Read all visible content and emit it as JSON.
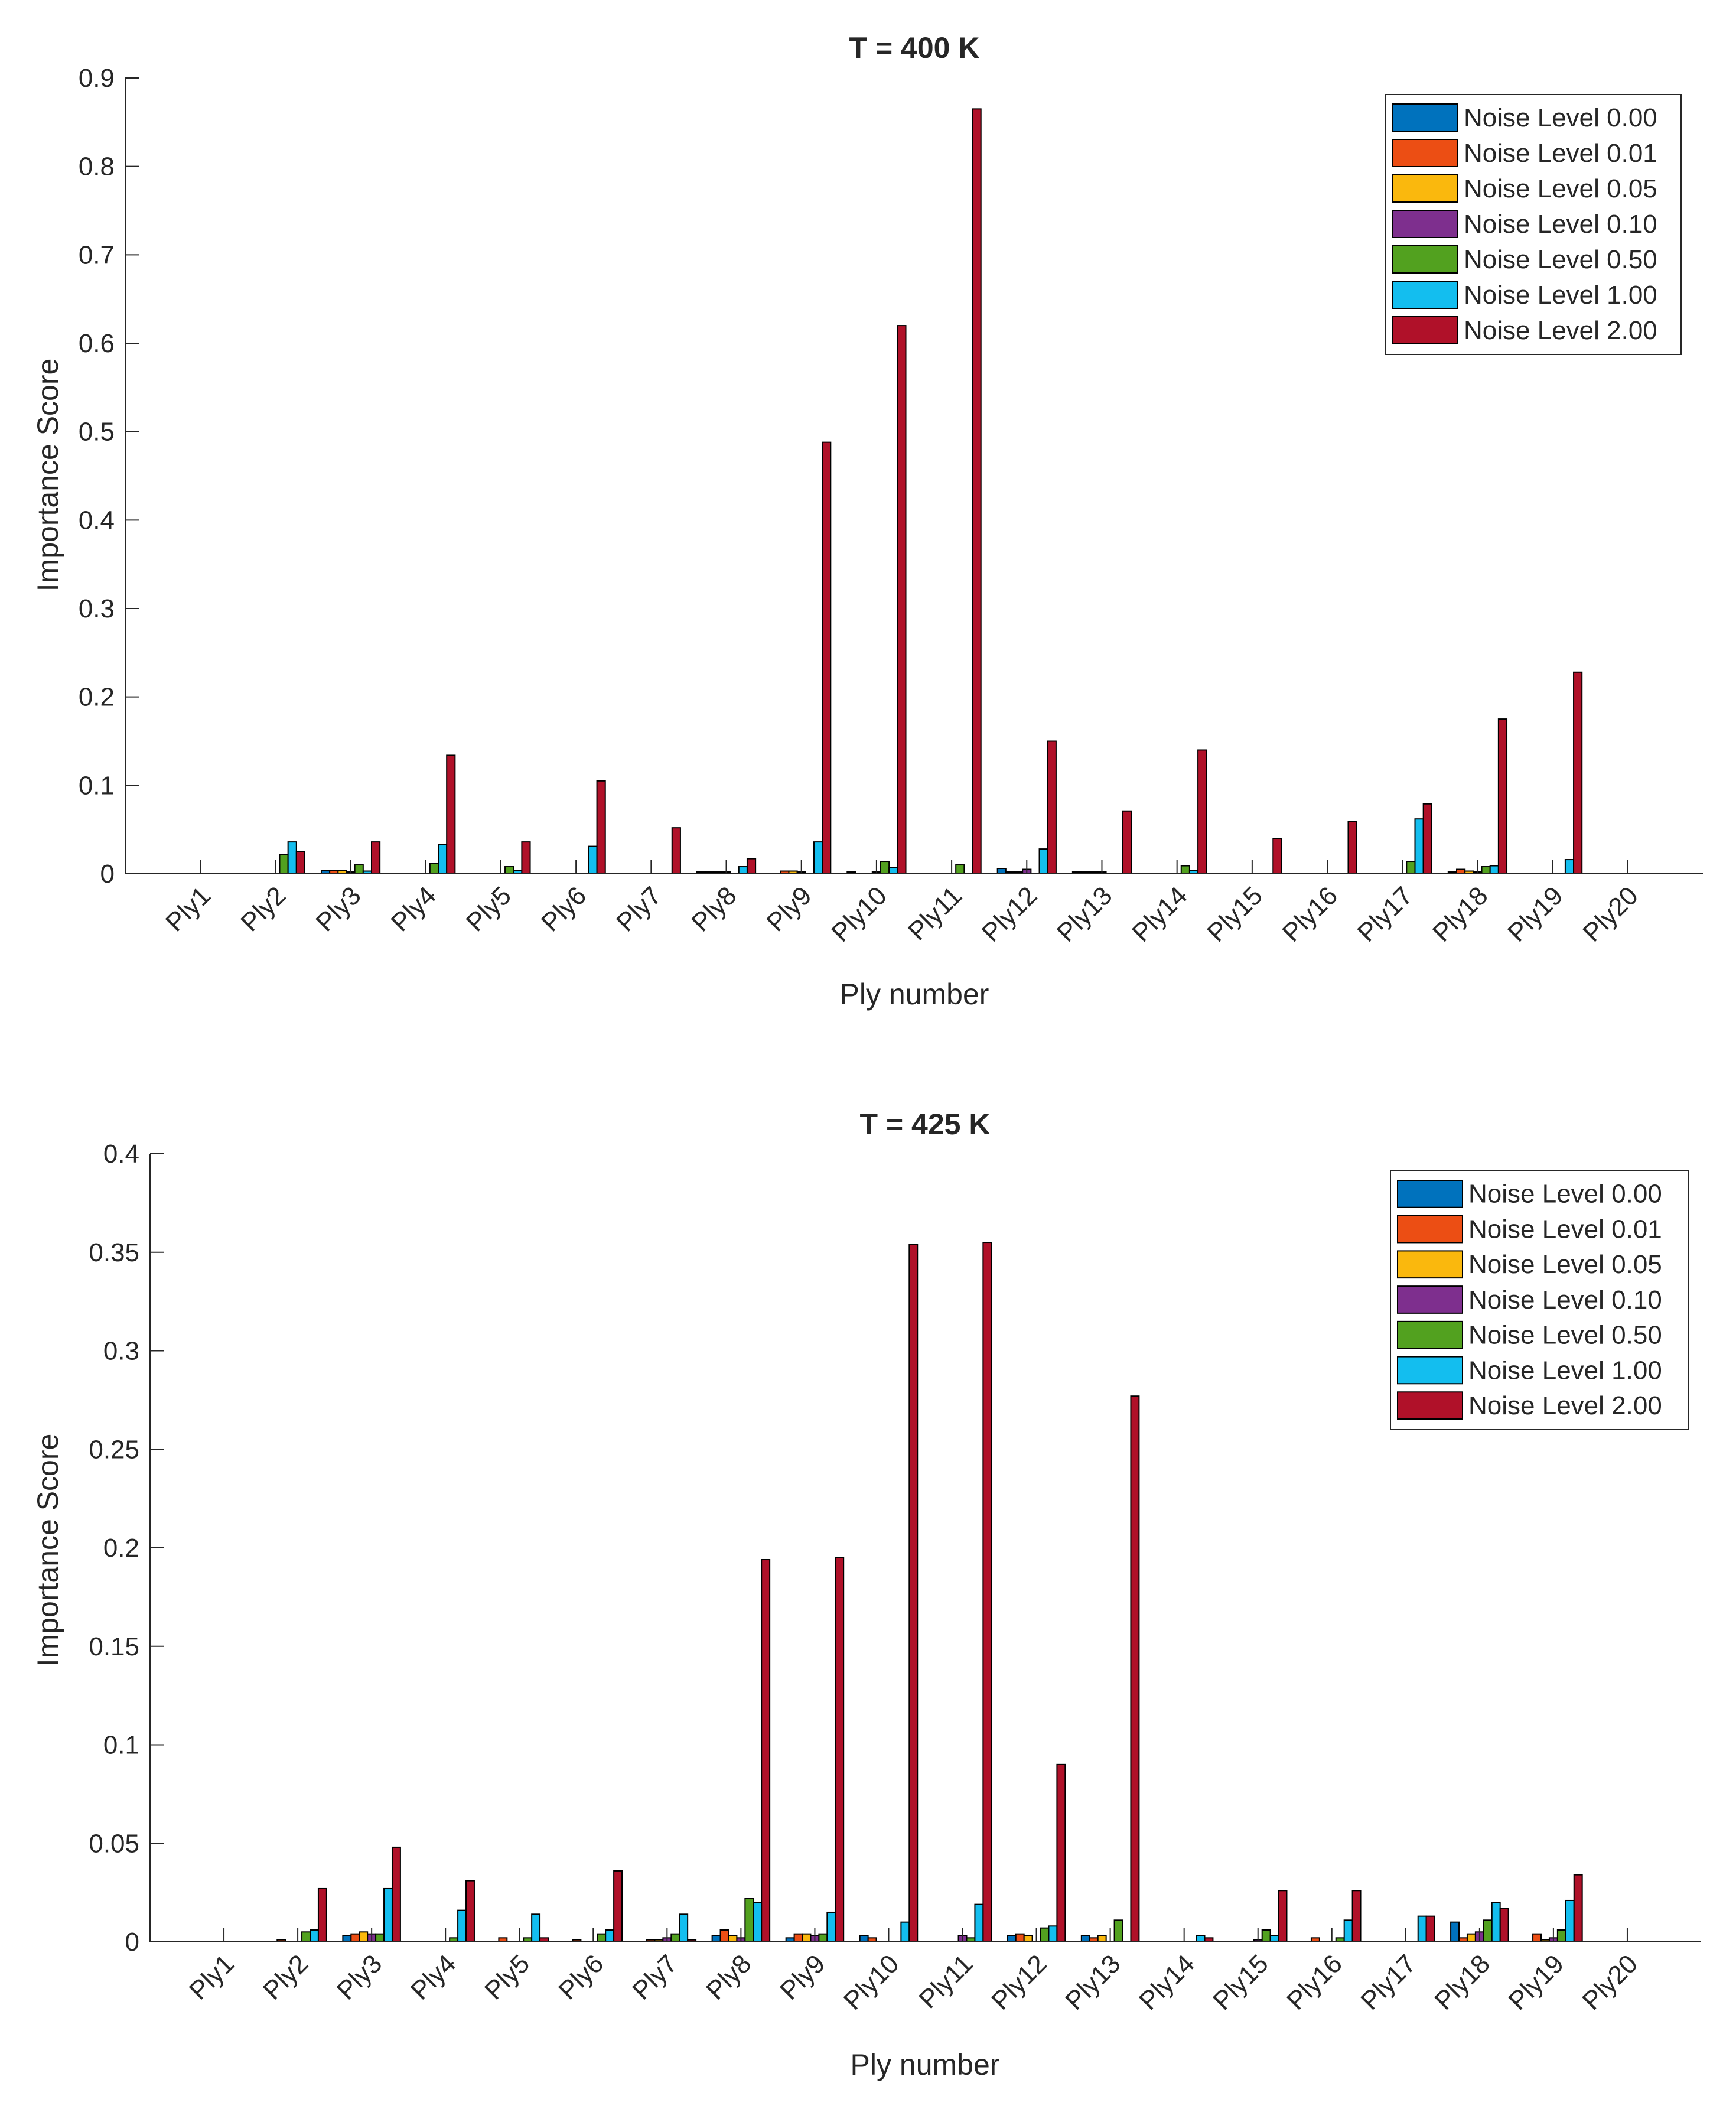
{
  "chart_data": [
    {
      "type": "bar",
      "title": "T = 400 K",
      "xlabel": "Ply number",
      "ylabel": "Importance Score",
      "ylim": [
        0,
        0.9
      ],
      "yticks": [
        0,
        0.1,
        0.2,
        0.3,
        0.4,
        0.5,
        0.6,
        0.7,
        0.8,
        0.9
      ],
      "ytick_labels": [
        "0",
        "0.1",
        "0.2",
        "0.3",
        "0.4",
        "0.5",
        "0.6",
        "0.7",
        "0.8",
        "0.9"
      ],
      "legend_position": "top-right",
      "categories": [
        "Ply1",
        "Ply2",
        "Ply3",
        "Ply4",
        "Ply5",
        "Ply6",
        "Ply7",
        "Ply8",
        "Ply9",
        "Ply10",
        "Ply11",
        "Ply12",
        "Ply13",
        "Ply14",
        "Ply15",
        "Ply16",
        "Ply17",
        "Ply18",
        "Ply19",
        "Ply20"
      ],
      "series": [
        {
          "name": "Noise Level 0.00",
          "values": [
            0,
            0,
            0.004,
            0,
            0,
            0,
            0,
            0.002,
            0,
            0.002,
            0,
            0.006,
            0.002,
            0,
            0,
            0,
            0,
            0.002,
            0,
            0
          ]
        },
        {
          "name": "Noise Level 0.01",
          "values": [
            0,
            0,
            0.004,
            0,
            0,
            0,
            0,
            0.002,
            0.003,
            0,
            0,
            0.002,
            0.002,
            0,
            0,
            0,
            0,
            0.005,
            0,
            0
          ]
        },
        {
          "name": "Noise Level 0.05",
          "values": [
            0,
            0,
            0.004,
            0,
            0,
            0,
            0,
            0.002,
            0.003,
            0,
            0,
            0.002,
            0.002,
            0,
            0,
            0,
            0,
            0.003,
            0,
            0
          ]
        },
        {
          "name": "Noise Level 0.10",
          "values": [
            0,
            0,
            0.002,
            0,
            0,
            0,
            0,
            0.002,
            0.002,
            0.002,
            0,
            0.005,
            0.002,
            0,
            0,
            0,
            0,
            0.002,
            0,
            0
          ]
        },
        {
          "name": "Noise Level 0.50",
          "values": [
            0,
            0.022,
            0.01,
            0.012,
            0.008,
            0,
            0,
            0,
            0,
            0.014,
            0.01,
            0,
            0,
            0.009,
            0,
            0,
            0.014,
            0.008,
            0,
            0
          ]
        },
        {
          "name": "Noise Level 1.00",
          "values": [
            0,
            0.036,
            0.003,
            0.033,
            0.004,
            0.031,
            0,
            0.008,
            0.036,
            0.007,
            0,
            0.028,
            0,
            0.004,
            0,
            0,
            0.062,
            0.009,
            0.016,
            0
          ]
        },
        {
          "name": "Noise Level 2.00",
          "values": [
            0,
            0.025,
            0.036,
            0.134,
            0.036,
            0.105,
            0.052,
            0.017,
            0.488,
            0.62,
            0.865,
            0.15,
            0.071,
            0.14,
            0.04,
            0.059,
            0.079,
            0.175,
            0.228,
            0
          ]
        }
      ]
    },
    {
      "type": "bar",
      "title": "T = 425 K",
      "xlabel": "Ply number",
      "ylabel": "Importance Score",
      "ylim": [
        0,
        0.4
      ],
      "yticks": [
        0,
        0.05,
        0.1,
        0.15,
        0.2,
        0.25,
        0.3,
        0.35,
        0.4
      ],
      "ytick_labels": [
        "0",
        "0.05",
        "0.1",
        "0.15",
        "0.2",
        "0.25",
        "0.3",
        "0.35",
        "0.4"
      ],
      "legend_position": "top-right",
      "categories": [
        "Ply1",
        "Ply2",
        "Ply3",
        "Ply4",
        "Ply5",
        "Ply6",
        "Ply7",
        "Ply8",
        "Ply9",
        "Ply10",
        "Ply11",
        "Ply12",
        "Ply13",
        "Ply14",
        "Ply15",
        "Ply16",
        "Ply17",
        "Ply18",
        "Ply19",
        "Ply20"
      ],
      "series": [
        {
          "name": "Noise Level 0.00",
          "values": [
            0,
            0,
            0.003,
            0,
            0,
            0,
            0,
            0.003,
            0.002,
            0.003,
            0,
            0.003,
            0.003,
            0,
            0,
            0,
            0,
            0.01,
            0,
            0
          ]
        },
        {
          "name": "Noise Level 0.01",
          "values": [
            0,
            0.001,
            0.004,
            0,
            0.002,
            0.001,
            0.001,
            0.006,
            0.004,
            0.002,
            0,
            0.004,
            0.002,
            0,
            0,
            0.002,
            0,
            0.002,
            0.004,
            0
          ]
        },
        {
          "name": "Noise Level 0.05",
          "values": [
            0,
            0,
            0.005,
            0,
            0,
            0,
            0.001,
            0.003,
            0.004,
            0,
            0,
            0.003,
            0.003,
            0,
            0,
            0,
            0,
            0.004,
            0.001,
            0
          ]
        },
        {
          "name": "Noise Level 0.10",
          "values": [
            0,
            0,
            0.004,
            0,
            0,
            0,
            0.002,
            0.002,
            0.003,
            0,
            0.003,
            0,
            0,
            0,
            0.001,
            0,
            0,
            0.005,
            0.002,
            0
          ]
        },
        {
          "name": "Noise Level 0.50",
          "values": [
            0,
            0.005,
            0.004,
            0.002,
            0.002,
            0.004,
            0.004,
            0.022,
            0.004,
            0,
            0.002,
            0.007,
            0.011,
            0,
            0.006,
            0.002,
            0,
            0.011,
            0.006,
            0
          ]
        },
        {
          "name": "Noise Level 1.00",
          "values": [
            0,
            0.006,
            0.027,
            0.016,
            0.014,
            0.006,
            0.014,
            0.02,
            0.015,
            0.01,
            0.019,
            0.008,
            0,
            0.003,
            0.003,
            0.011,
            0.013,
            0.02,
            0.021,
            0
          ]
        },
        {
          "name": "Noise Level 2.00",
          "values": [
            0,
            0.027,
            0.048,
            0.031,
            0.002,
            0.036,
            0.001,
            0.194,
            0.195,
            0.354,
            0.355,
            0.09,
            0.277,
            0.002,
            0.026,
            0.026,
            0.013,
            0.017,
            0.034,
            0
          ]
        }
      ]
    }
  ],
  "colors": [
    "#0072BD",
    "#EC4E14",
    "#FAB80D",
    "#7E2F8E",
    "#52A11F",
    "#13BEEF",
    "#B01129"
  ]
}
